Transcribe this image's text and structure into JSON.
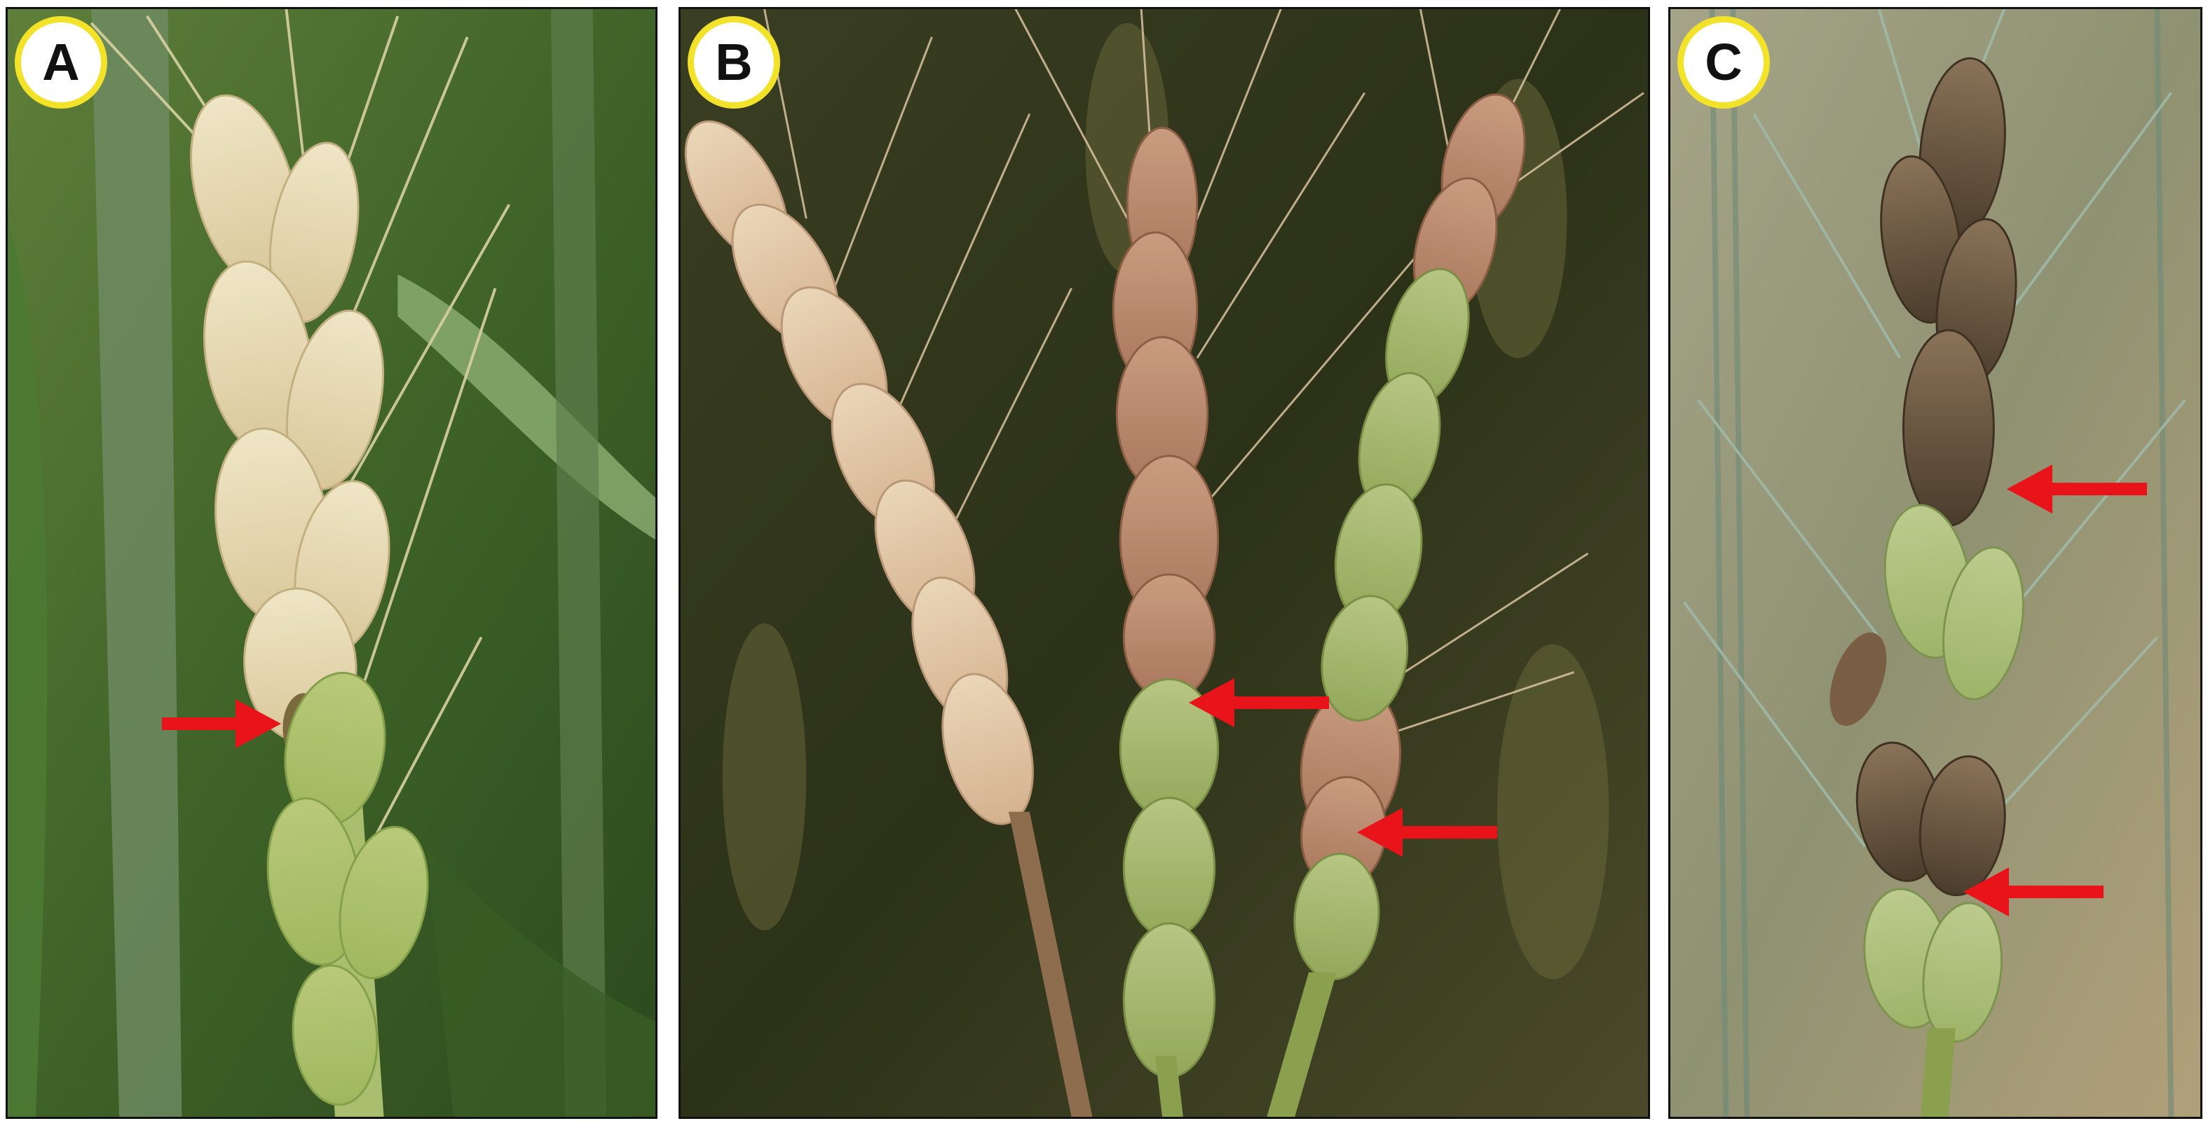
{
  "figure": {
    "panels": [
      {
        "label": "A",
        "subject": "wheat-spike-partially-bleached",
        "arrow_direction": "right",
        "arrow_color": "#e8141a"
      },
      {
        "label": "B",
        "subject": "three-wheat-spikes-with-bleached-and-brown-spikelets",
        "arrow_direction": "left",
        "arrow_color": "#e8141a"
      },
      {
        "label": "C",
        "subject": "wheat-spike-with-dark-brown-lesions",
        "arrow_direction": "left",
        "arrow_color": "#e8141a"
      }
    ],
    "badge_fill": "#ffffff",
    "badge_ring": "#f2e22a",
    "border_color": "#111111"
  }
}
